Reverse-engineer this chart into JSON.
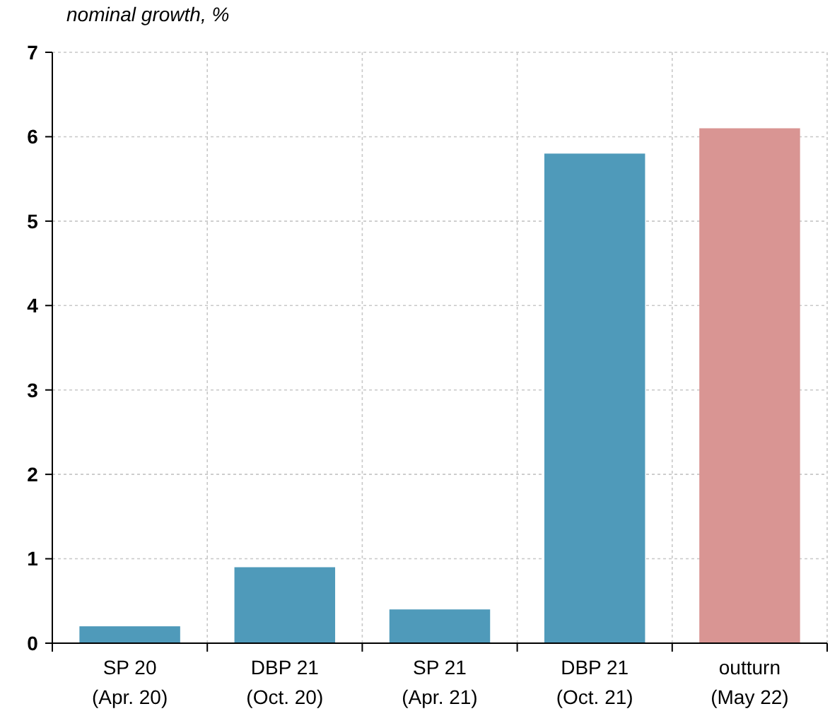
{
  "chart_data": {
    "type": "bar",
    "ylabel": "nominal growth, %",
    "categories": [
      "SP 20\n(Apr. 20)",
      "DBP 21\n(Oct. 20)",
      "SP 21\n(Apr. 21)",
      "DBP 21\n(Oct. 21)",
      "outturn\n(May 22)"
    ],
    "values": [
      0.2,
      0.9,
      0.4,
      5.8,
      6.1
    ],
    "colors": [
      "#4f9aba",
      "#4f9aba",
      "#4f9aba",
      "#4f9aba",
      "#d99593"
    ],
    "ylim": [
      0,
      7
    ],
    "yticks": [
      0,
      1,
      2,
      3,
      4,
      5,
      6,
      7
    ],
    "grid": true
  }
}
